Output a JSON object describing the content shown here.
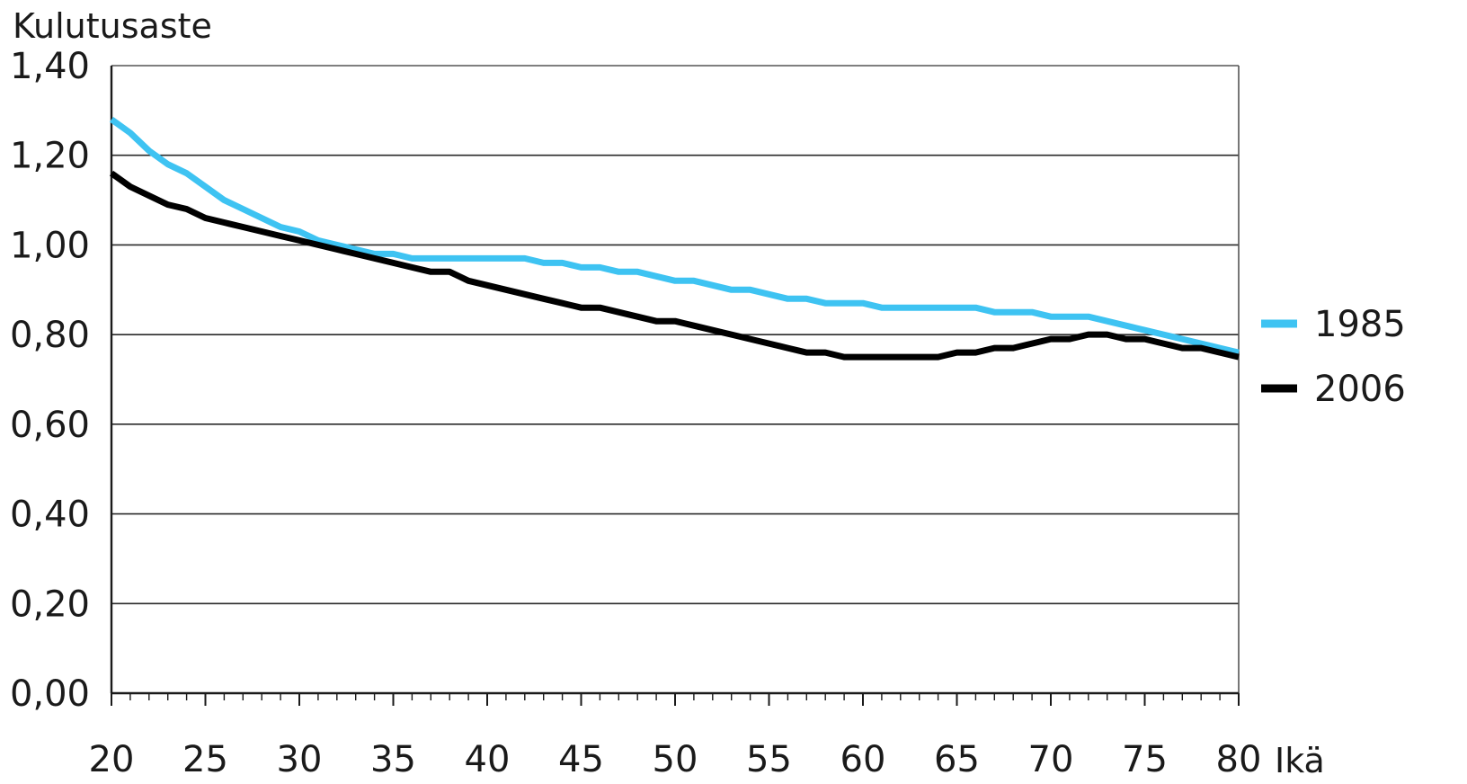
{
  "chart_data": {
    "type": "line",
    "ylabel": "Kulutusaste",
    "xlabel": "Ikä",
    "xlim": [
      20,
      80
    ],
    "ylim": [
      0,
      1.4
    ],
    "x_ticks": [
      "20",
      "25",
      "30",
      "35",
      "40",
      "45",
      "50",
      "55",
      "60",
      "65",
      "70",
      "75",
      "80"
    ],
    "y_ticks": [
      "0,00",
      "0,20",
      "0,40",
      "0,60",
      "0,80",
      "1,00",
      "1,20",
      "1,40"
    ],
    "grid": true,
    "legend_position": "right",
    "x": [
      20,
      21,
      22,
      23,
      24,
      25,
      26,
      27,
      28,
      29,
      30,
      31,
      32,
      33,
      34,
      35,
      36,
      37,
      38,
      39,
      40,
      41,
      42,
      43,
      44,
      45,
      46,
      47,
      48,
      49,
      50,
      51,
      52,
      53,
      54,
      55,
      56,
      57,
      58,
      59,
      60,
      61,
      62,
      63,
      64,
      65,
      66,
      67,
      68,
      69,
      70,
      71,
      72,
      73,
      74,
      75,
      76,
      77,
      78,
      79,
      80
    ],
    "series": [
      {
        "name": "1985",
        "color": "#3ec3f2",
        "values": [
          1.28,
          1.25,
          1.21,
          1.18,
          1.16,
          1.13,
          1.1,
          1.08,
          1.06,
          1.04,
          1.03,
          1.01,
          1.0,
          0.99,
          0.98,
          0.98,
          0.97,
          0.97,
          0.97,
          0.97,
          0.97,
          0.97,
          0.97,
          0.96,
          0.96,
          0.95,
          0.95,
          0.94,
          0.94,
          0.93,
          0.92,
          0.92,
          0.91,
          0.9,
          0.9,
          0.89,
          0.88,
          0.88,
          0.87,
          0.87,
          0.87,
          0.86,
          0.86,
          0.86,
          0.86,
          0.86,
          0.86,
          0.85,
          0.85,
          0.85,
          0.84,
          0.84,
          0.84,
          0.83,
          0.82,
          0.81,
          0.8,
          0.79,
          0.78,
          0.77,
          0.76
        ]
      },
      {
        "name": "2006",
        "color": "#000000",
        "values": [
          1.16,
          1.13,
          1.11,
          1.09,
          1.08,
          1.06,
          1.05,
          1.04,
          1.03,
          1.02,
          1.01,
          1.0,
          0.99,
          0.98,
          0.97,
          0.96,
          0.95,
          0.94,
          0.94,
          0.92,
          0.91,
          0.9,
          0.89,
          0.88,
          0.87,
          0.86,
          0.86,
          0.85,
          0.84,
          0.83,
          0.83,
          0.82,
          0.81,
          0.8,
          0.79,
          0.78,
          0.77,
          0.76,
          0.76,
          0.75,
          0.75,
          0.75,
          0.75,
          0.75,
          0.75,
          0.76,
          0.76,
          0.77,
          0.77,
          0.78,
          0.79,
          0.79,
          0.8,
          0.8,
          0.79,
          0.79,
          0.78,
          0.77,
          0.77,
          0.76,
          0.75
        ]
      }
    ]
  }
}
